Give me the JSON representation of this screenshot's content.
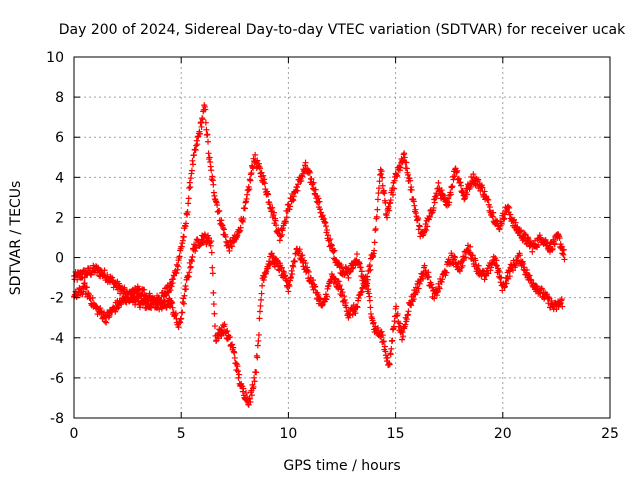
{
  "chart_data": {
    "type": "scatter",
    "title": "Day 200 of 2024, Sidereal Day-to-day VTEC variation (SDTVAR) for receiver ucak",
    "xlabel": "GPS time / hours",
    "ylabel": "SDTVAR / TECUs",
    "xlim": [
      0,
      25
    ],
    "ylim": [
      -8,
      10
    ],
    "xticks": [
      "0",
      "5",
      "10",
      "15",
      "20",
      "25"
    ],
    "yticks": [
      "-8",
      "-6",
      "-4",
      "-2",
      "0",
      "2",
      "4",
      "6",
      "8",
      "10"
    ],
    "grid": true,
    "marker": "+",
    "color": "#ff0000",
    "series": [
      {
        "name": "SDTVAR",
        "anchors_upper": [
          [
            0.0,
            -1.0
          ],
          [
            0.5,
            -0.8
          ],
          [
            1.0,
            -0.6
          ],
          [
            1.5,
            -0.9
          ],
          [
            2.0,
            -1.4
          ],
          [
            2.5,
            -1.9
          ],
          [
            3.0,
            -2.2
          ],
          [
            3.5,
            -2.4
          ],
          [
            4.0,
            -2.0
          ],
          [
            4.5,
            -1.5
          ],
          [
            4.8,
            -0.5
          ],
          [
            5.2,
            1.5
          ],
          [
            5.5,
            4.5
          ],
          [
            5.8,
            6.0
          ],
          [
            6.1,
            7.5
          ],
          [
            6.3,
            5.0
          ],
          [
            6.5,
            3.5
          ],
          [
            6.8,
            2.0
          ],
          [
            7.2,
            0.5
          ],
          [
            7.6,
            1.0
          ],
          [
            8.0,
            2.5
          ],
          [
            8.4,
            5.0
          ],
          [
            8.8,
            4.0
          ],
          [
            9.2,
            2.5
          ],
          [
            9.6,
            1.0
          ],
          [
            10.0,
            2.5
          ],
          [
            10.4,
            3.5
          ],
          [
            10.8,
            4.5
          ],
          [
            11.2,
            3.5
          ],
          [
            11.6,
            2.0
          ],
          [
            12.0,
            0.5
          ],
          [
            12.4,
            -0.5
          ],
          [
            12.8,
            -0.8
          ],
          [
            13.2,
            0.0
          ],
          [
            13.6,
            -1.5
          ],
          [
            14.0,
            0.5
          ],
          [
            14.3,
            4.5
          ],
          [
            14.6,
            2.0
          ],
          [
            15.0,
            4.0
          ],
          [
            15.4,
            5.0
          ],
          [
            15.8,
            3.0
          ],
          [
            16.2,
            1.0
          ],
          [
            16.6,
            2.0
          ],
          [
            17.0,
            3.5
          ],
          [
            17.4,
            2.5
          ],
          [
            17.8,
            4.5
          ],
          [
            18.2,
            3.0
          ],
          [
            18.6,
            4.0
          ],
          [
            19.0,
            3.5
          ],
          [
            19.4,
            2.5
          ],
          [
            19.8,
            1.5
          ],
          [
            20.2,
            2.5
          ],
          [
            20.6,
            1.5
          ],
          [
            21.0,
            1.0
          ],
          [
            21.4,
            0.5
          ],
          [
            21.8,
            1.0
          ],
          [
            22.2,
            0.5
          ],
          [
            22.6,
            1.0
          ],
          [
            22.9,
            0.0
          ]
        ],
        "anchors_lower": [
          [
            0.0,
            -2.0
          ],
          [
            0.5,
            -1.5
          ],
          [
            1.0,
            -2.5
          ],
          [
            1.5,
            -3.0
          ],
          [
            2.0,
            -2.4
          ],
          [
            2.5,
            -2.0
          ],
          [
            3.0,
            -1.6
          ],
          [
            3.5,
            -2.0
          ],
          [
            4.0,
            -2.5
          ],
          [
            4.5,
            -2.2
          ],
          [
            4.9,
            -3.5
          ],
          [
            5.3,
            -1.0
          ],
          [
            5.6,
            0.5
          ],
          [
            6.0,
            1.0
          ],
          [
            6.4,
            0.8
          ],
          [
            6.6,
            -4.0
          ],
          [
            7.0,
            -3.5
          ],
          [
            7.4,
            -4.5
          ],
          [
            7.8,
            -6.5
          ],
          [
            8.2,
            -7.2
          ],
          [
            8.5,
            -5.5
          ],
          [
            8.8,
            -1.0
          ],
          [
            9.2,
            0.0
          ],
          [
            9.6,
            -0.5
          ],
          [
            10.0,
            -1.5
          ],
          [
            10.4,
            0.5
          ],
          [
            10.8,
            -0.5
          ],
          [
            11.2,
            -1.5
          ],
          [
            11.6,
            -2.5
          ],
          [
            12.0,
            -1.0
          ],
          [
            12.4,
            -1.5
          ],
          [
            12.8,
            -2.8
          ],
          [
            13.2,
            -2.5
          ],
          [
            13.6,
            -1.0
          ],
          [
            14.0,
            -3.5
          ],
          [
            14.4,
            -4.0
          ],
          [
            14.7,
            -5.5
          ],
          [
            15.0,
            -2.5
          ],
          [
            15.3,
            -4.0
          ],
          [
            15.6,
            -2.5
          ],
          [
            16.0,
            -1.5
          ],
          [
            16.4,
            -0.5
          ],
          [
            16.8,
            -2.0
          ],
          [
            17.2,
            -1.0
          ],
          [
            17.6,
            0.0
          ],
          [
            18.0,
            -0.5
          ],
          [
            18.4,
            0.5
          ],
          [
            18.8,
            -0.5
          ],
          [
            19.2,
            -1.0
          ],
          [
            19.6,
            0.0
          ],
          [
            20.0,
            -1.5
          ],
          [
            20.4,
            -0.5
          ],
          [
            20.8,
            0.0
          ],
          [
            21.2,
            -1.0
          ],
          [
            21.6,
            -1.5
          ],
          [
            22.0,
            -2.0
          ],
          [
            22.4,
            -2.5
          ],
          [
            22.8,
            -2.2
          ]
        ]
      }
    ]
  }
}
